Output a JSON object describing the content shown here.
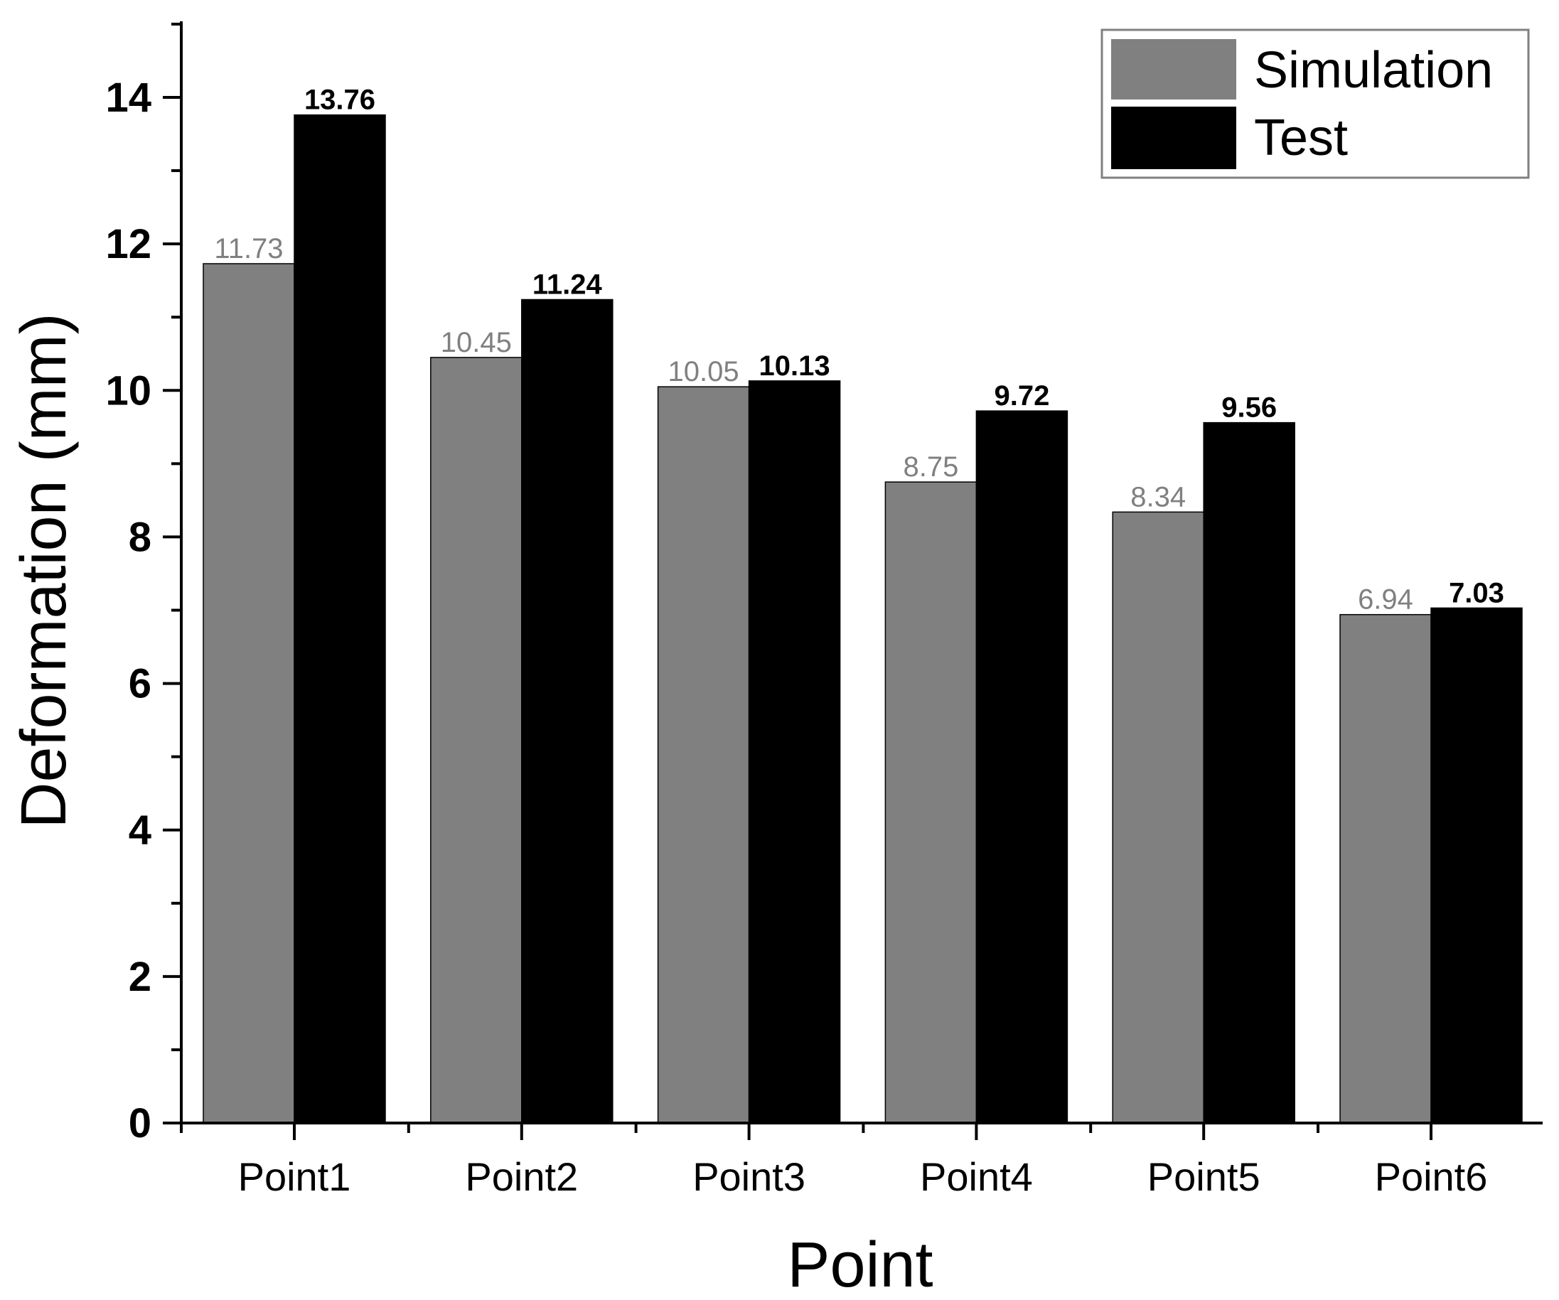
{
  "chart_data": {
    "type": "bar",
    "title": "",
    "xlabel": "Point",
    "ylabel": "Deformation (mm)",
    "categories": [
      "Point1",
      "Point2",
      "Point3",
      "Point4",
      "Point5",
      "Point6"
    ],
    "series": [
      {
        "name": "Simulation",
        "values": [
          11.73,
          10.45,
          10.05,
          8.75,
          8.34,
          6.94
        ],
        "labels": [
          "11.73",
          "10.45",
          "10.05",
          "8.75",
          "8.34",
          "6.94"
        ],
        "color": "#808080",
        "label_color": "#808080",
        "label_weight": "normal"
      },
      {
        "name": "Test",
        "values": [
          13.76,
          11.24,
          10.13,
          9.72,
          9.56,
          7.03
        ],
        "labels": [
          "13.76",
          "11.24",
          "10.13",
          "9.72",
          "9.56",
          "7.03"
        ],
        "color": "#000000",
        "label_color": "#000000",
        "label_weight": "bold"
      }
    ],
    "ylim": [
      0,
      15
    ],
    "yticks": [
      0,
      2,
      4,
      6,
      8,
      10,
      12,
      14
    ],
    "ytick_labels": [
      "0",
      "2",
      "4",
      "6",
      "8",
      "10",
      "12",
      "14"
    ],
    "legend_position": "top-right",
    "grid": false
  }
}
